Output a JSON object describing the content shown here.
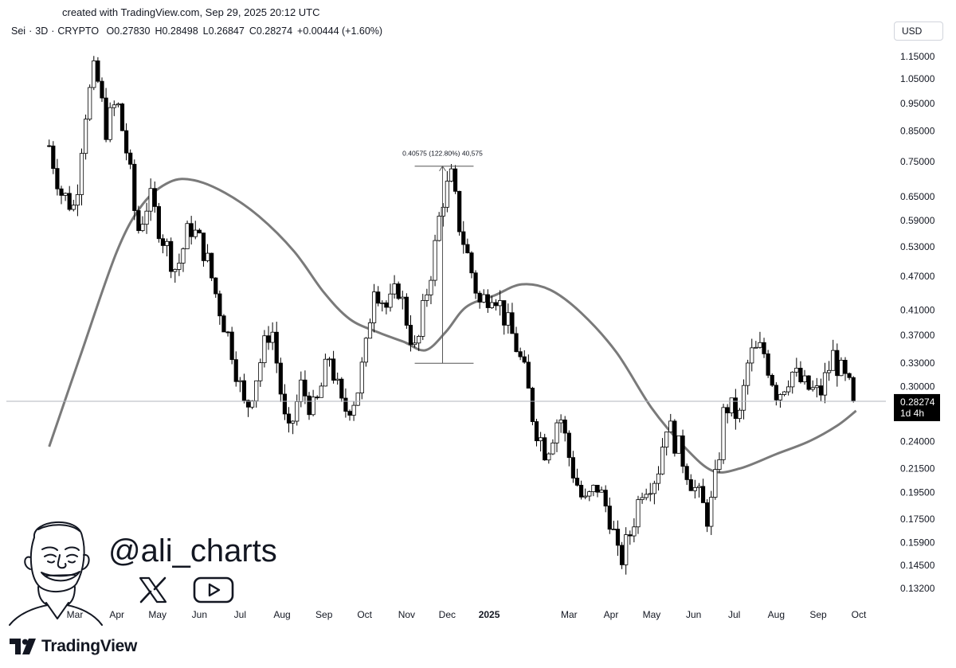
{
  "header": {
    "credit": "created with TradingView.com, Sep 29, 2025 20:12 UTC",
    "currency_button": "USD"
  },
  "legend": {
    "symbol": "Sei",
    "interval": "3D",
    "exchange": "CRYPTO",
    "open": "O0.27830",
    "high": "H0.28498",
    "low": "L0.26847",
    "close": "C0.28274",
    "change": "+0.00444 (+1.60%)"
  },
  "branding": {
    "tradingview": "TradingView",
    "handle": "@ali_charts",
    "icons": [
      "tradingview-logo-icon",
      "x-logo-icon",
      "youtube-icon",
      "avatar-caricature-icon"
    ]
  },
  "colors": {
    "up_candle": "#ffffff",
    "down_candle": "#000000",
    "candle_outline": "#000000",
    "moving_average": "#7a7a7a",
    "current_price_label_bg": "#000000"
  },
  "chart_data": {
    "type": "candlestick",
    "y_scale": "log",
    "ylim": [
      0.118,
      1.24
    ],
    "y_ticks": [
      "1.15000",
      "1.05000",
      "0.95000",
      "0.85000",
      "0.75000",
      "0.65000",
      "0.59000",
      "0.53000",
      "0.47000",
      "0.41000",
      "0.37000",
      "0.33000",
      "0.30000",
      "0.24000",
      "0.21500",
      "0.19500",
      "0.17500",
      "0.15900",
      "0.14500",
      "0.13200"
    ],
    "x_ticks": [
      {
        "label": "Mar",
        "date": "2024-03-01"
      },
      {
        "label": "Apr",
        "date": "2024-04-01"
      },
      {
        "label": "May",
        "date": "2024-05-01"
      },
      {
        "label": "Jun",
        "date": "2024-06-01"
      },
      {
        "label": "Jul",
        "date": "2024-07-01"
      },
      {
        "label": "Aug",
        "date": "2024-08-01"
      },
      {
        "label": "Sep",
        "date": "2024-09-01"
      },
      {
        "label": "Oct",
        "date": "2024-10-01"
      },
      {
        "label": "Nov",
        "date": "2024-11-01"
      },
      {
        "label": "Dec",
        "date": "2024-12-01"
      },
      {
        "label": "2025",
        "date": "2025-01-01",
        "bold": true
      },
      {
        "label": "Mar",
        "date": "2025-03-01"
      },
      {
        "label": "Apr",
        "date": "2025-04-01"
      },
      {
        "label": "May",
        "date": "2025-05-01"
      },
      {
        "label": "Jun",
        "date": "2025-06-01"
      },
      {
        "label": "Jul",
        "date": "2025-07-01"
      },
      {
        "label": "Aug",
        "date": "2025-08-01"
      },
      {
        "label": "Sep",
        "date": "2025-09-01"
      },
      {
        "label": "Oct",
        "date": "2025-10-01"
      }
    ],
    "current_price": {
      "value": 0.28274,
      "label": "0.28274",
      "countdown": "1d 4h"
    },
    "measure_annotation": {
      "label": "0.40575 (122.80%) 40,575",
      "from": {
        "date": "2024-11-07",
        "price": 0.33
      },
      "to": {
        "date": "2024-12-04",
        "price": 0.736
      }
    },
    "price_path": [
      {
        "date": "2024-02-11",
        "close": 0.8
      },
      {
        "date": "2024-02-20",
        "close": 0.66
      },
      {
        "date": "2024-03-01",
        "close": 0.62
      },
      {
        "date": "2024-03-08",
        "close": 0.9
      },
      {
        "date": "2024-03-16",
        "close": 1.1
      },
      {
        "date": "2024-03-24",
        "close": 0.86
      },
      {
        "date": "2024-04-01",
        "close": 0.96
      },
      {
        "date": "2024-04-10",
        "close": 0.74
      },
      {
        "date": "2024-04-16",
        "close": 0.56
      },
      {
        "date": "2024-04-25",
        "close": 0.65
      },
      {
        "date": "2024-05-05",
        "close": 0.55
      },
      {
        "date": "2024-05-15",
        "close": 0.48
      },
      {
        "date": "2024-05-25",
        "close": 0.58
      },
      {
        "date": "2024-06-05",
        "close": 0.52
      },
      {
        "date": "2024-06-15",
        "close": 0.42
      },
      {
        "date": "2024-06-25",
        "close": 0.35
      },
      {
        "date": "2024-07-05",
        "close": 0.27
      },
      {
        "date": "2024-07-14",
        "close": 0.32
      },
      {
        "date": "2024-07-24",
        "close": 0.39
      },
      {
        "date": "2024-08-05",
        "close": 0.24
      },
      {
        "date": "2024-08-15",
        "close": 0.3
      },
      {
        "date": "2024-08-25",
        "close": 0.27
      },
      {
        "date": "2024-09-05",
        "close": 0.34
      },
      {
        "date": "2024-09-15",
        "close": 0.27
      },
      {
        "date": "2024-09-25",
        "close": 0.29
      },
      {
        "date": "2024-10-02",
        "close": 0.35
      },
      {
        "date": "2024-10-08",
        "close": 0.46
      },
      {
        "date": "2024-10-18",
        "close": 0.41
      },
      {
        "date": "2024-10-26",
        "close": 0.45
      },
      {
        "date": "2024-11-04",
        "close": 0.37
      },
      {
        "date": "2024-11-08",
        "close": 0.34
      },
      {
        "date": "2024-11-14",
        "close": 0.42
      },
      {
        "date": "2024-11-21",
        "close": 0.51
      },
      {
        "date": "2024-11-27",
        "close": 0.64
      },
      {
        "date": "2024-12-04",
        "close": 0.7
      },
      {
        "date": "2024-12-10",
        "close": 0.58
      },
      {
        "date": "2024-12-17",
        "close": 0.5
      },
      {
        "date": "2024-12-25",
        "close": 0.42
      },
      {
        "date": "2025-01-04",
        "close": 0.45
      },
      {
        "date": "2025-01-12",
        "close": 0.4
      },
      {
        "date": "2025-01-20",
        "close": 0.36
      },
      {
        "date": "2025-01-28",
        "close": 0.31
      },
      {
        "date": "2025-02-03",
        "close": 0.26
      },
      {
        "date": "2025-02-12",
        "close": 0.23
      },
      {
        "date": "2025-02-22",
        "close": 0.27
      },
      {
        "date": "2025-03-02",
        "close": 0.22
      },
      {
        "date": "2025-03-12",
        "close": 0.185
      },
      {
        "date": "2025-03-22",
        "close": 0.2
      },
      {
        "date": "2025-04-01",
        "close": 0.175
      },
      {
        "date": "2025-04-07",
        "close": 0.145
      },
      {
        "date": "2025-04-15",
        "close": 0.165
      },
      {
        "date": "2025-04-24",
        "close": 0.2
      },
      {
        "date": "2025-05-05",
        "close": 0.21
      },
      {
        "date": "2025-05-12",
        "close": 0.26
      },
      {
        "date": "2025-05-22",
        "close": 0.23
      },
      {
        "date": "2025-06-01",
        "close": 0.2
      },
      {
        "date": "2025-06-12",
        "close": 0.175
      },
      {
        "date": "2025-06-18",
        "close": 0.21
      },
      {
        "date": "2025-06-24",
        "close": 0.28
      },
      {
        "date": "2025-07-05",
        "close": 0.265
      },
      {
        "date": "2025-07-12",
        "close": 0.34
      },
      {
        "date": "2025-07-22",
        "close": 0.35
      },
      {
        "date": "2025-08-02",
        "close": 0.29
      },
      {
        "date": "2025-08-12",
        "close": 0.32
      },
      {
        "date": "2025-08-22",
        "close": 0.3
      },
      {
        "date": "2025-09-02",
        "close": 0.29
      },
      {
        "date": "2025-09-12",
        "close": 0.34
      },
      {
        "date": "2025-09-20",
        "close": 0.31
      },
      {
        "date": "2025-09-29",
        "close": 0.28274
      }
    ],
    "moving_average": [
      {
        "date": "2024-02-11",
        "value": 0.235
      },
      {
        "date": "2024-03-05",
        "value": 0.34
      },
      {
        "date": "2024-04-01",
        "value": 0.52
      },
      {
        "date": "2024-04-20",
        "value": 0.63
      },
      {
        "date": "2024-05-10",
        "value": 0.69
      },
      {
        "date": "2024-05-28",
        "value": 0.695
      },
      {
        "date": "2024-06-20",
        "value": 0.66
      },
      {
        "date": "2024-07-15",
        "value": 0.6
      },
      {
        "date": "2024-08-10",
        "value": 0.52
      },
      {
        "date": "2024-09-01",
        "value": 0.44
      },
      {
        "date": "2024-09-20",
        "value": 0.395
      },
      {
        "date": "2024-10-10",
        "value": 0.375
      },
      {
        "date": "2024-10-30",
        "value": 0.36
      },
      {
        "date": "2024-11-15",
        "value": 0.348
      },
      {
        "date": "2024-11-30",
        "value": 0.375
      },
      {
        "date": "2024-12-15",
        "value": 0.415
      },
      {
        "date": "2025-01-05",
        "value": 0.435
      },
      {
        "date": "2025-01-25",
        "value": 0.455
      },
      {
        "date": "2025-02-15",
        "value": 0.445
      },
      {
        "date": "2025-03-10",
        "value": 0.405
      },
      {
        "date": "2025-04-05",
        "value": 0.345
      },
      {
        "date": "2025-05-01",
        "value": 0.275
      },
      {
        "date": "2025-05-25",
        "value": 0.235
      },
      {
        "date": "2025-06-15",
        "value": 0.213
      },
      {
        "date": "2025-07-05",
        "value": 0.215
      },
      {
        "date": "2025-08-01",
        "value": 0.228
      },
      {
        "date": "2025-08-25",
        "value": 0.24
      },
      {
        "date": "2025-09-15",
        "value": 0.256
      },
      {
        "date": "2025-09-29",
        "value": 0.272
      }
    ]
  }
}
